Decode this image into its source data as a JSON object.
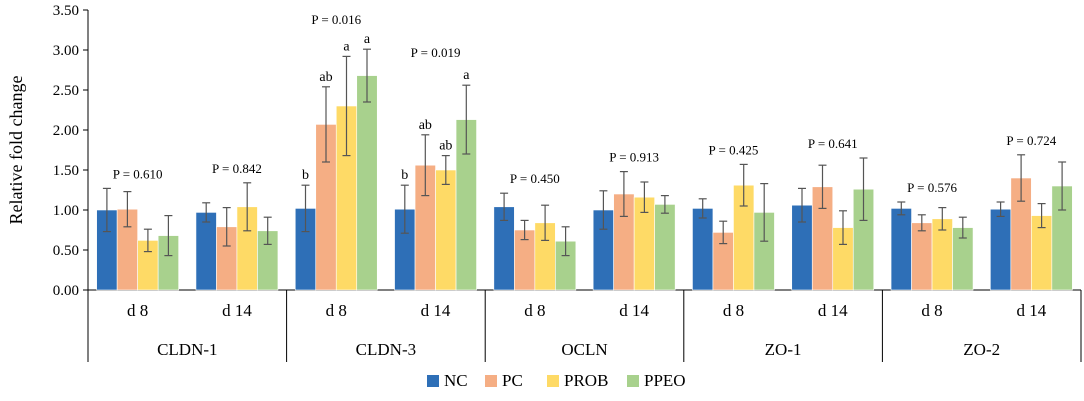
{
  "chart_data": {
    "type": "bar",
    "ylabel": "Relative fold change",
    "xlabel": "",
    "ylim": [
      0,
      3.5
    ],
    "yticks": [
      "0.00",
      "0.50",
      "1.00",
      "1.50",
      "2.00",
      "2.50",
      "3.00",
      "3.50"
    ],
    "grid": false,
    "legend_position": "bottom",
    "series": [
      {
        "name": "NC",
        "color": "#2E6FB7"
      },
      {
        "name": "PC",
        "color": "#F5AE84"
      },
      {
        "name": "PROB",
        "color": "#FEDA66"
      },
      {
        "name": "PPEO",
        "color": "#A8D18D"
      }
    ],
    "groups": [
      {
        "name": "CLDN-1",
        "days": [
          {
            "label": "d 8",
            "p_value": "P = 0.610",
            "values": [
              1.0,
              1.01,
              0.62,
              0.68
            ],
            "errors": [
              0.27,
              0.22,
              0.14,
              0.25
            ],
            "letters": [
              "",
              "",
              "",
              ""
            ]
          },
          {
            "label": "d 14",
            "p_value": "P = 0.842",
            "values": [
              0.97,
              0.79,
              1.04,
              0.74
            ],
            "errors": [
              0.12,
              0.24,
              0.3,
              0.17
            ],
            "letters": [
              "",
              "",
              "",
              ""
            ]
          }
        ]
      },
      {
        "name": "CLDN-3",
        "days": [
          {
            "label": "d 8",
            "p_value": "P = 0.016",
            "values": [
              1.02,
              2.07,
              2.3,
              2.68
            ],
            "errors": [
              0.29,
              0.47,
              0.62,
              0.33
            ],
            "letters": [
              "b",
              "ab",
              "a",
              "a"
            ]
          },
          {
            "label": "d 14",
            "p_value": "P = 0.019",
            "values": [
              1.01,
              1.56,
              1.5,
              2.13
            ],
            "errors": [
              0.3,
              0.38,
              0.18,
              0.43
            ],
            "letters": [
              "b",
              "ab",
              "ab",
              "a"
            ]
          }
        ]
      },
      {
        "name": "OCLN",
        "days": [
          {
            "label": "d 8",
            "p_value": "P = 0.450",
            "values": [
              1.04,
              0.75,
              0.84,
              0.61
            ],
            "errors": [
              0.17,
              0.12,
              0.22,
              0.18
            ],
            "letters": [
              "",
              "",
              "",
              ""
            ]
          },
          {
            "label": "d 14",
            "p_value": "P = 0.913",
            "values": [
              1.0,
              1.2,
              1.16,
              1.07
            ],
            "errors": [
              0.24,
              0.28,
              0.19,
              0.11
            ],
            "letters": [
              "",
              "",
              "",
              ""
            ]
          }
        ]
      },
      {
        "name": "ZO-1",
        "days": [
          {
            "label": "d 8",
            "p_value": "P = 0.425",
            "values": [
              1.02,
              0.72,
              1.31,
              0.97
            ],
            "errors": [
              0.12,
              0.14,
              0.26,
              0.36
            ],
            "letters": [
              "",
              "",
              "",
              ""
            ]
          },
          {
            "label": "d 14",
            "p_value": "P = 0.641",
            "values": [
              1.06,
              1.29,
              0.78,
              1.26
            ],
            "errors": [
              0.21,
              0.27,
              0.21,
              0.39
            ],
            "letters": [
              "",
              "",
              "",
              ""
            ]
          }
        ]
      },
      {
        "name": "ZO-2",
        "days": [
          {
            "label": "d 8",
            "p_value": "P = 0.576",
            "values": [
              1.02,
              0.84,
              0.89,
              0.78
            ],
            "errors": [
              0.08,
              0.1,
              0.14,
              0.13
            ],
            "letters": [
              "",
              "",
              "",
              ""
            ]
          },
          {
            "label": "d 14",
            "p_value": "P = 0.724",
            "values": [
              1.01,
              1.4,
              0.93,
              1.3
            ],
            "errors": [
              0.09,
              0.29,
              0.15,
              0.3
            ],
            "letters": [
              "",
              "",
              "",
              ""
            ]
          }
        ]
      }
    ]
  }
}
